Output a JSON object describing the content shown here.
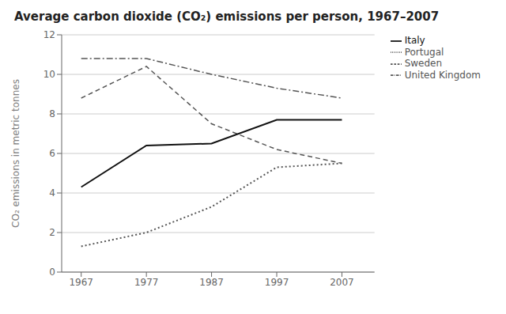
{
  "chart_data": {
    "type": "line",
    "title": "Average carbon dioxide (CO₂) emissions per person, 1967–2007",
    "y_label": "CO₂ emissions in metric tonnes",
    "x": [
      1967,
      1977,
      1987,
      1997,
      2007
    ],
    "series": [
      {
        "name": "United Kingdom",
        "color": "#555555",
        "line_style": "dashdot",
        "values": [
          10.8,
          10.8,
          10.0,
          9.3,
          8.8
        ]
      },
      {
        "name": "Sweden",
        "color": "#555555",
        "line_style": "dashed",
        "values": [
          8.8,
          10.4,
          7.5,
          6.2,
          5.5
        ]
      },
      {
        "name": "Italy",
        "color": "#111111",
        "line_style": "solid",
        "values": [
          4.3,
          6.4,
          6.5,
          7.7,
          7.7
        ]
      },
      {
        "name": "Portugal",
        "color": "#555555",
        "line_style": "dotted",
        "values": [
          1.3,
          2.0,
          3.3,
          5.3,
          5.5
        ]
      }
    ],
    "xlim": [
      1964,
      2012
    ],
    "ylim": [
      0,
      12
    ],
    "xticks": [
      1967,
      1977,
      1987,
      1997,
      2007
    ],
    "yticks": [
      0,
      2,
      4,
      6,
      8,
      10,
      12
    ],
    "grid": true,
    "legend": "right"
  }
}
